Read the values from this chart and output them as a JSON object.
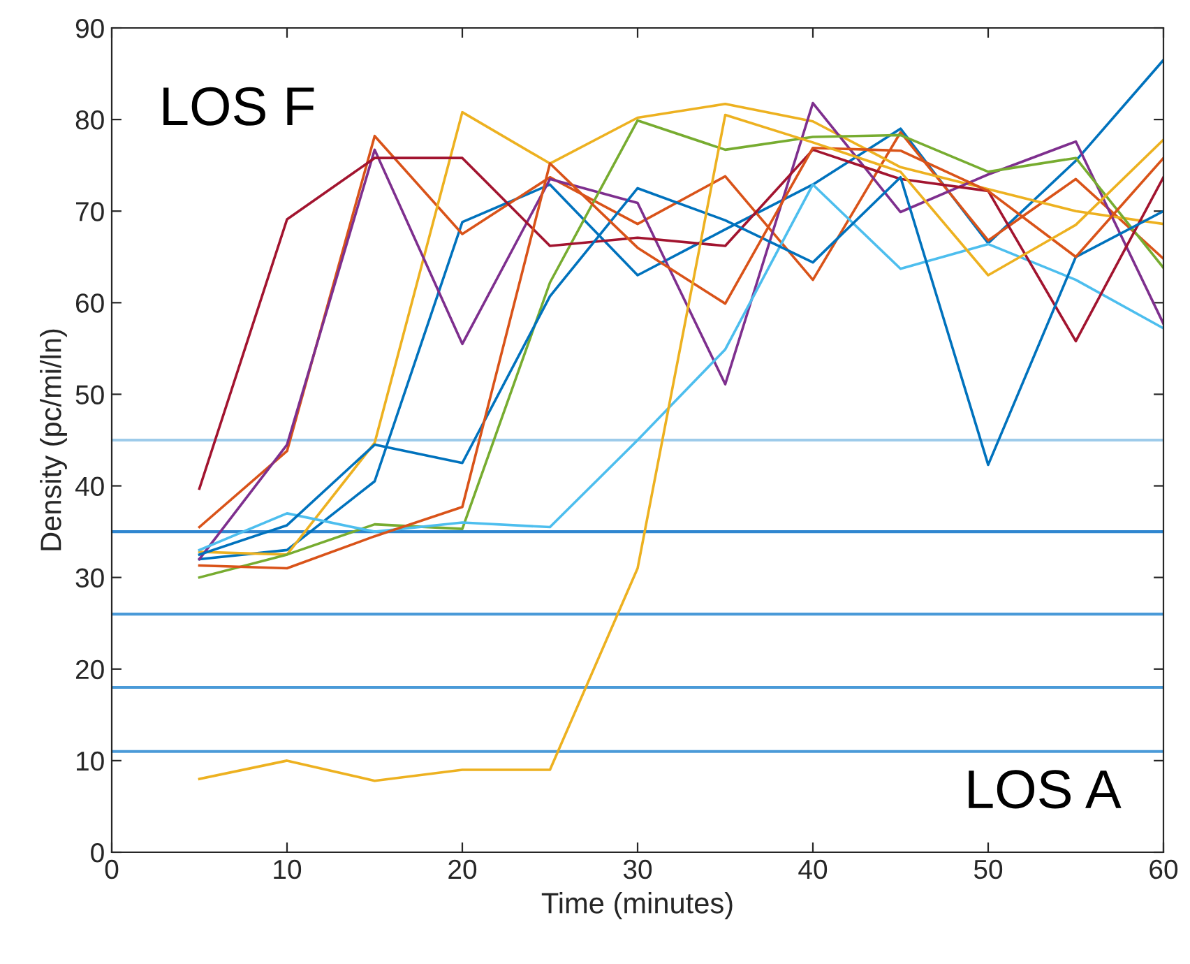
{
  "chart_data": {
    "type": "line",
    "xlabel": "Time (minutes)",
    "ylabel": "Density (pc/mi/ln)",
    "x": [
      5,
      10,
      15,
      20,
      25,
      30,
      35,
      40,
      45,
      50,
      55,
      60
    ],
    "xlim": [
      0,
      60
    ],
    "xticks": [
      0,
      10,
      20,
      30,
      40,
      50,
      60
    ],
    "ylim": [
      0,
      90
    ],
    "yticks": [
      0,
      10,
      20,
      30,
      40,
      50,
      60,
      70,
      80,
      90
    ],
    "grid": false,
    "marker": "none",
    "line_style": "solid",
    "series": [
      {
        "color": "#0072bd",
        "values": [
          32,
          33,
          40.5,
          68.8,
          72.9,
          63,
          68,
          72.9,
          79,
          66.5,
          75.5,
          86.5
        ]
      },
      {
        "color": "#d95319",
        "values": [
          35.5,
          43.8,
          78.2,
          67.5,
          73.7,
          68.6,
          73.8,
          62.5,
          78.6,
          66.8,
          73.5,
          64.8
        ]
      },
      {
        "color": "#edb120",
        "values": [
          32.8,
          32.5,
          44.7,
          80.8,
          75.2,
          80.2,
          81.7,
          79.8,
          74.8,
          72.4,
          70,
          68.6
        ]
      },
      {
        "color": "#7e2f8e",
        "values": [
          32,
          44.5,
          76.7,
          55.5,
          73.5,
          70.9,
          51.1,
          81.8,
          69.9,
          74,
          77.6,
          57.7
        ]
      },
      {
        "color": "#77ac30",
        "values": [
          30,
          32.5,
          35.8,
          35.3,
          62.2,
          79.9,
          76.7,
          78.1,
          78.3,
          74.3,
          75.8,
          63.8
        ]
      },
      {
        "color": "#4dbeee",
        "values": [
          33,
          37,
          35,
          36,
          35.5,
          45,
          54.9,
          72.9,
          63.7,
          66.4,
          62.5,
          57.2
        ]
      },
      {
        "color": "#a2142f",
        "values": [
          39.7,
          69.1,
          75.8,
          75.8,
          66.2,
          67.1,
          66.2,
          76.7,
          73.5,
          72.2,
          55.8,
          73.7
        ]
      },
      {
        "color": "#0072bd",
        "values": [
          32.5,
          35.7,
          44.5,
          42.5,
          60.7,
          72.5,
          69,
          64.4,
          73.7,
          42.3,
          65,
          70
        ]
      },
      {
        "color": "#d95319",
        "values": [
          31.3,
          31,
          34.5,
          37.7,
          75.2,
          66,
          59.9,
          76.9,
          76.6,
          72.2,
          65,
          75.8
        ]
      },
      {
        "color": "#edb120",
        "values": [
          8,
          10,
          7.8,
          9,
          9,
          31,
          80.5,
          77.5,
          74.3,
          63,
          68.5,
          77.8
        ]
      }
    ],
    "ref_lines": [
      {
        "axis": "y",
        "value": 45,
        "color": "#9dcbea"
      },
      {
        "axis": "y",
        "value": 35,
        "color": "#2f86d0"
      },
      {
        "axis": "y",
        "value": 26,
        "color": "#4a9ad8"
      },
      {
        "axis": "y",
        "value": 18,
        "color": "#4a9ad8"
      },
      {
        "axis": "y",
        "value": 11,
        "color": "#4a9ad8"
      }
    ],
    "annotations": [
      "LOS F",
      "LOS A"
    ]
  }
}
